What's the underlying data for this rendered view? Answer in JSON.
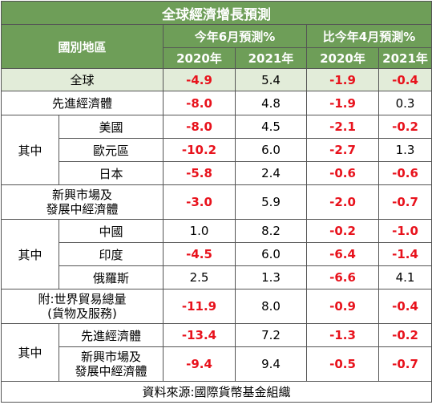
{
  "title": "全球經濟增長預測",
  "header": {
    "row_label": "國別地區",
    "group1": "今年6月預測%",
    "group2": "比今年4月預測%",
    "years": [
      "2020年",
      "2021年",
      "2020年",
      "2021年"
    ]
  },
  "group_label": "其中",
  "rows": [
    {
      "label": "全球",
      "v": [
        "-4.9",
        "5.4",
        "-1.9",
        "-0.4"
      ]
    },
    {
      "label": "先進經濟體",
      "v": [
        "-8.0",
        "4.8",
        "-1.9",
        "0.3"
      ]
    },
    {
      "label": "美國",
      "v": [
        "-8.0",
        "4.5",
        "-2.1",
        "-0.2"
      ]
    },
    {
      "label": "歐元區",
      "v": [
        "-10.2",
        "6.0",
        "-2.7",
        "1.3"
      ]
    },
    {
      "label": "日本",
      "v": [
        "-5.8",
        "2.4",
        "-0.6",
        "-0.6"
      ]
    },
    {
      "label": "新興市場及\n發展中經濟體",
      "v": [
        "-3.0",
        "5.9",
        "-2.0",
        "-0.7"
      ]
    },
    {
      "label": "中國",
      "v": [
        "1.0",
        "8.2",
        "-0.2",
        "-1.0"
      ]
    },
    {
      "label": "印度",
      "v": [
        "-4.5",
        "6.0",
        "-6.4",
        "-1.4"
      ]
    },
    {
      "label": "俄羅斯",
      "v": [
        "2.5",
        "1.3",
        "-6.6",
        "4.1"
      ]
    },
    {
      "label": "附:世界貿易總量\n(貨物及服務)",
      "v": [
        "-11.9",
        "8.0",
        "-0.9",
        "-0.4"
      ]
    },
    {
      "label": "先進經濟體",
      "v": [
        "-13.4",
        "7.2",
        "-1.3",
        "-0.2"
      ]
    },
    {
      "label": "新興市場及\n發展中經濟體",
      "v": [
        "-9.4",
        "9.4",
        "-0.5",
        "-0.7"
      ]
    }
  ],
  "source": "資料來源:國際貨幣基金組織",
  "colors": {
    "header_bg": "#6e9e58",
    "highlight_bg": "#e2ecd9",
    "negative": "#e8121c"
  }
}
